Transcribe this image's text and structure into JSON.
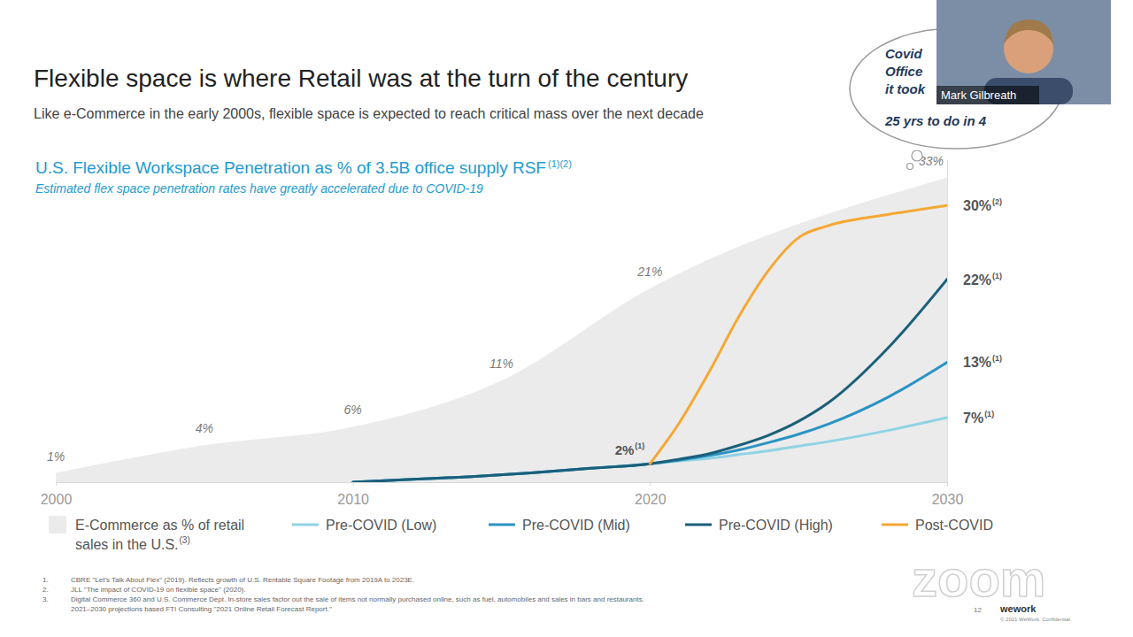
{
  "slide": {
    "title": "Flexible space is where Retail was at the turn of the century",
    "subtitle": "Like e-Commerce in the early 2000s, flexible space is expected to reach critical mass over the next decade"
  },
  "chart_data": {
    "type": "line",
    "title": "U.S. Flexible Workspace Penetration as % of 3.5B office supply RSF",
    "title_note": "(1)(2)",
    "subtitle": "Estimated flex space penetration rates have greatly accelerated due to COVID-19",
    "xlim": [
      2000,
      2030
    ],
    "xticks": [
      2000,
      2010,
      2020,
      2030
    ],
    "ylim": [
      0,
      35
    ],
    "yticks": [],
    "tick_labels": "x",
    "grid": false,
    "legend": "bottom",
    "data_labels": true,
    "series": [
      {
        "name": "E-Commerce as % of retail sales in the U.S.",
        "name_note": "(3)",
        "type": "area",
        "color": "#ebebeb",
        "x": [
          2000,
          2005,
          2010,
          2015,
          2020,
          2030
        ],
        "values": [
          1,
          4,
          6,
          11,
          21,
          33
        ],
        "value_labels": [
          "1%",
          "4%",
          "6%",
          "11%",
          "21%",
          "33%"
        ]
      },
      {
        "name": "Pre-COVID (Low)",
        "type": "line",
        "color": "#8fd3e4",
        "x": [
          2010,
          2012,
          2014,
          2016,
          2018,
          2020,
          2021,
          2022,
          2023,
          2024,
          2025,
          2026,
          2028,
          2030
        ],
        "values": [
          0,
          0.3,
          0.6,
          1.0,
          1.5,
          2,
          2.3,
          2.6,
          3.0,
          3.4,
          3.9,
          4.4,
          5.6,
          7
        ],
        "value_labels": [
          null,
          null,
          null,
          null,
          null,
          null,
          null,
          null,
          null,
          null,
          null,
          null,
          null,
          "7%"
        ],
        "label_notes": [
          null,
          null,
          null,
          null,
          null,
          null,
          null,
          null,
          null,
          null,
          null,
          null,
          null,
          "(1)"
        ]
      },
      {
        "name": "Pre-COVID (Mid)",
        "type": "line",
        "color": "#2a93c4",
        "x": [
          2010,
          2012,
          2014,
          2016,
          2018,
          2020,
          2021,
          2022,
          2023,
          2024,
          2025,
          2026,
          2028,
          2030
        ],
        "values": [
          0,
          0.3,
          0.6,
          1.0,
          1.5,
          2,
          2.4,
          2.9,
          3.5,
          4.3,
          5.2,
          6.3,
          9.2,
          13
        ],
        "value_labels": [
          null,
          null,
          null,
          null,
          null,
          null,
          null,
          null,
          null,
          null,
          null,
          null,
          null,
          "13%"
        ],
        "label_notes": [
          null,
          null,
          null,
          null,
          null,
          null,
          null,
          null,
          null,
          null,
          null,
          null,
          null,
          "(1)"
        ]
      },
      {
        "name": "Pre-COVID (High)",
        "type": "line",
        "color": "#1b5f7a",
        "x": [
          2010,
          2012,
          2014,
          2016,
          2018,
          2020,
          2021,
          2022,
          2023,
          2024,
          2025,
          2026,
          2028,
          2030
        ],
        "values": [
          0,
          0.3,
          0.6,
          1.0,
          1.5,
          2,
          2.5,
          3.1,
          4.0,
          5.1,
          6.6,
          8.6,
          14.5,
          22
        ],
        "value_labels": [
          null,
          null,
          null,
          null,
          null,
          "2%",
          null,
          null,
          null,
          null,
          null,
          null,
          null,
          "22%"
        ],
        "label_notes": [
          null,
          null,
          null,
          null,
          null,
          "(1)",
          null,
          null,
          null,
          null,
          null,
          null,
          null,
          "(1)"
        ]
      },
      {
        "name": "Post-COVID",
        "type": "line",
        "color": "#f5a834",
        "x": [
          2010,
          2012,
          2014,
          2016,
          2018,
          2020,
          2021,
          2022,
          2023,
          2024,
          2025,
          2026,
          2028,
          2030
        ],
        "values": [
          null,
          null,
          null,
          null,
          null,
          2,
          6.5,
          12,
          18,
          23,
          26.5,
          27.8,
          29,
          30
        ],
        "value_labels": [
          null,
          null,
          null,
          null,
          null,
          null,
          null,
          null,
          null,
          null,
          null,
          null,
          null,
          "30%"
        ],
        "label_notes": [
          null,
          null,
          null,
          null,
          null,
          null,
          null,
          null,
          null,
          null,
          null,
          null,
          null,
          "(2)"
        ]
      }
    ]
  },
  "footnotes": [
    {
      "number": "1.",
      "lines": [
        "CBRE \"Let's Talk About Flex\" (2019). Reflects growth of U.S. Rentable Square Footage from 2019A to 2023E."
      ]
    },
    {
      "number": "2.",
      "lines": [
        "JLL \"The impact of COVID-19 on flexible space\" (2020)."
      ]
    },
    {
      "number": "3.",
      "lines": [
        "Digital Commerce 360 and U.S. Commerce Dept. In-store sales factor out the sale of items not normally purchased online, such as fuel, automobiles and sales in bars and restaurants.",
        "2021–2030 projections based FTI Consulting \"2021 Online Retail Forecast Report.\""
      ]
    }
  ],
  "overlay": {
    "speaker": "Mark Gilbreath",
    "bubble": [
      "Covid",
      "Office",
      "it took",
      "25 yrs to do in 4"
    ]
  },
  "footer": {
    "watermark": "zoom",
    "page": "12",
    "brand": "wework",
    "copyright": "© 2021 WeWork. Confidential."
  }
}
